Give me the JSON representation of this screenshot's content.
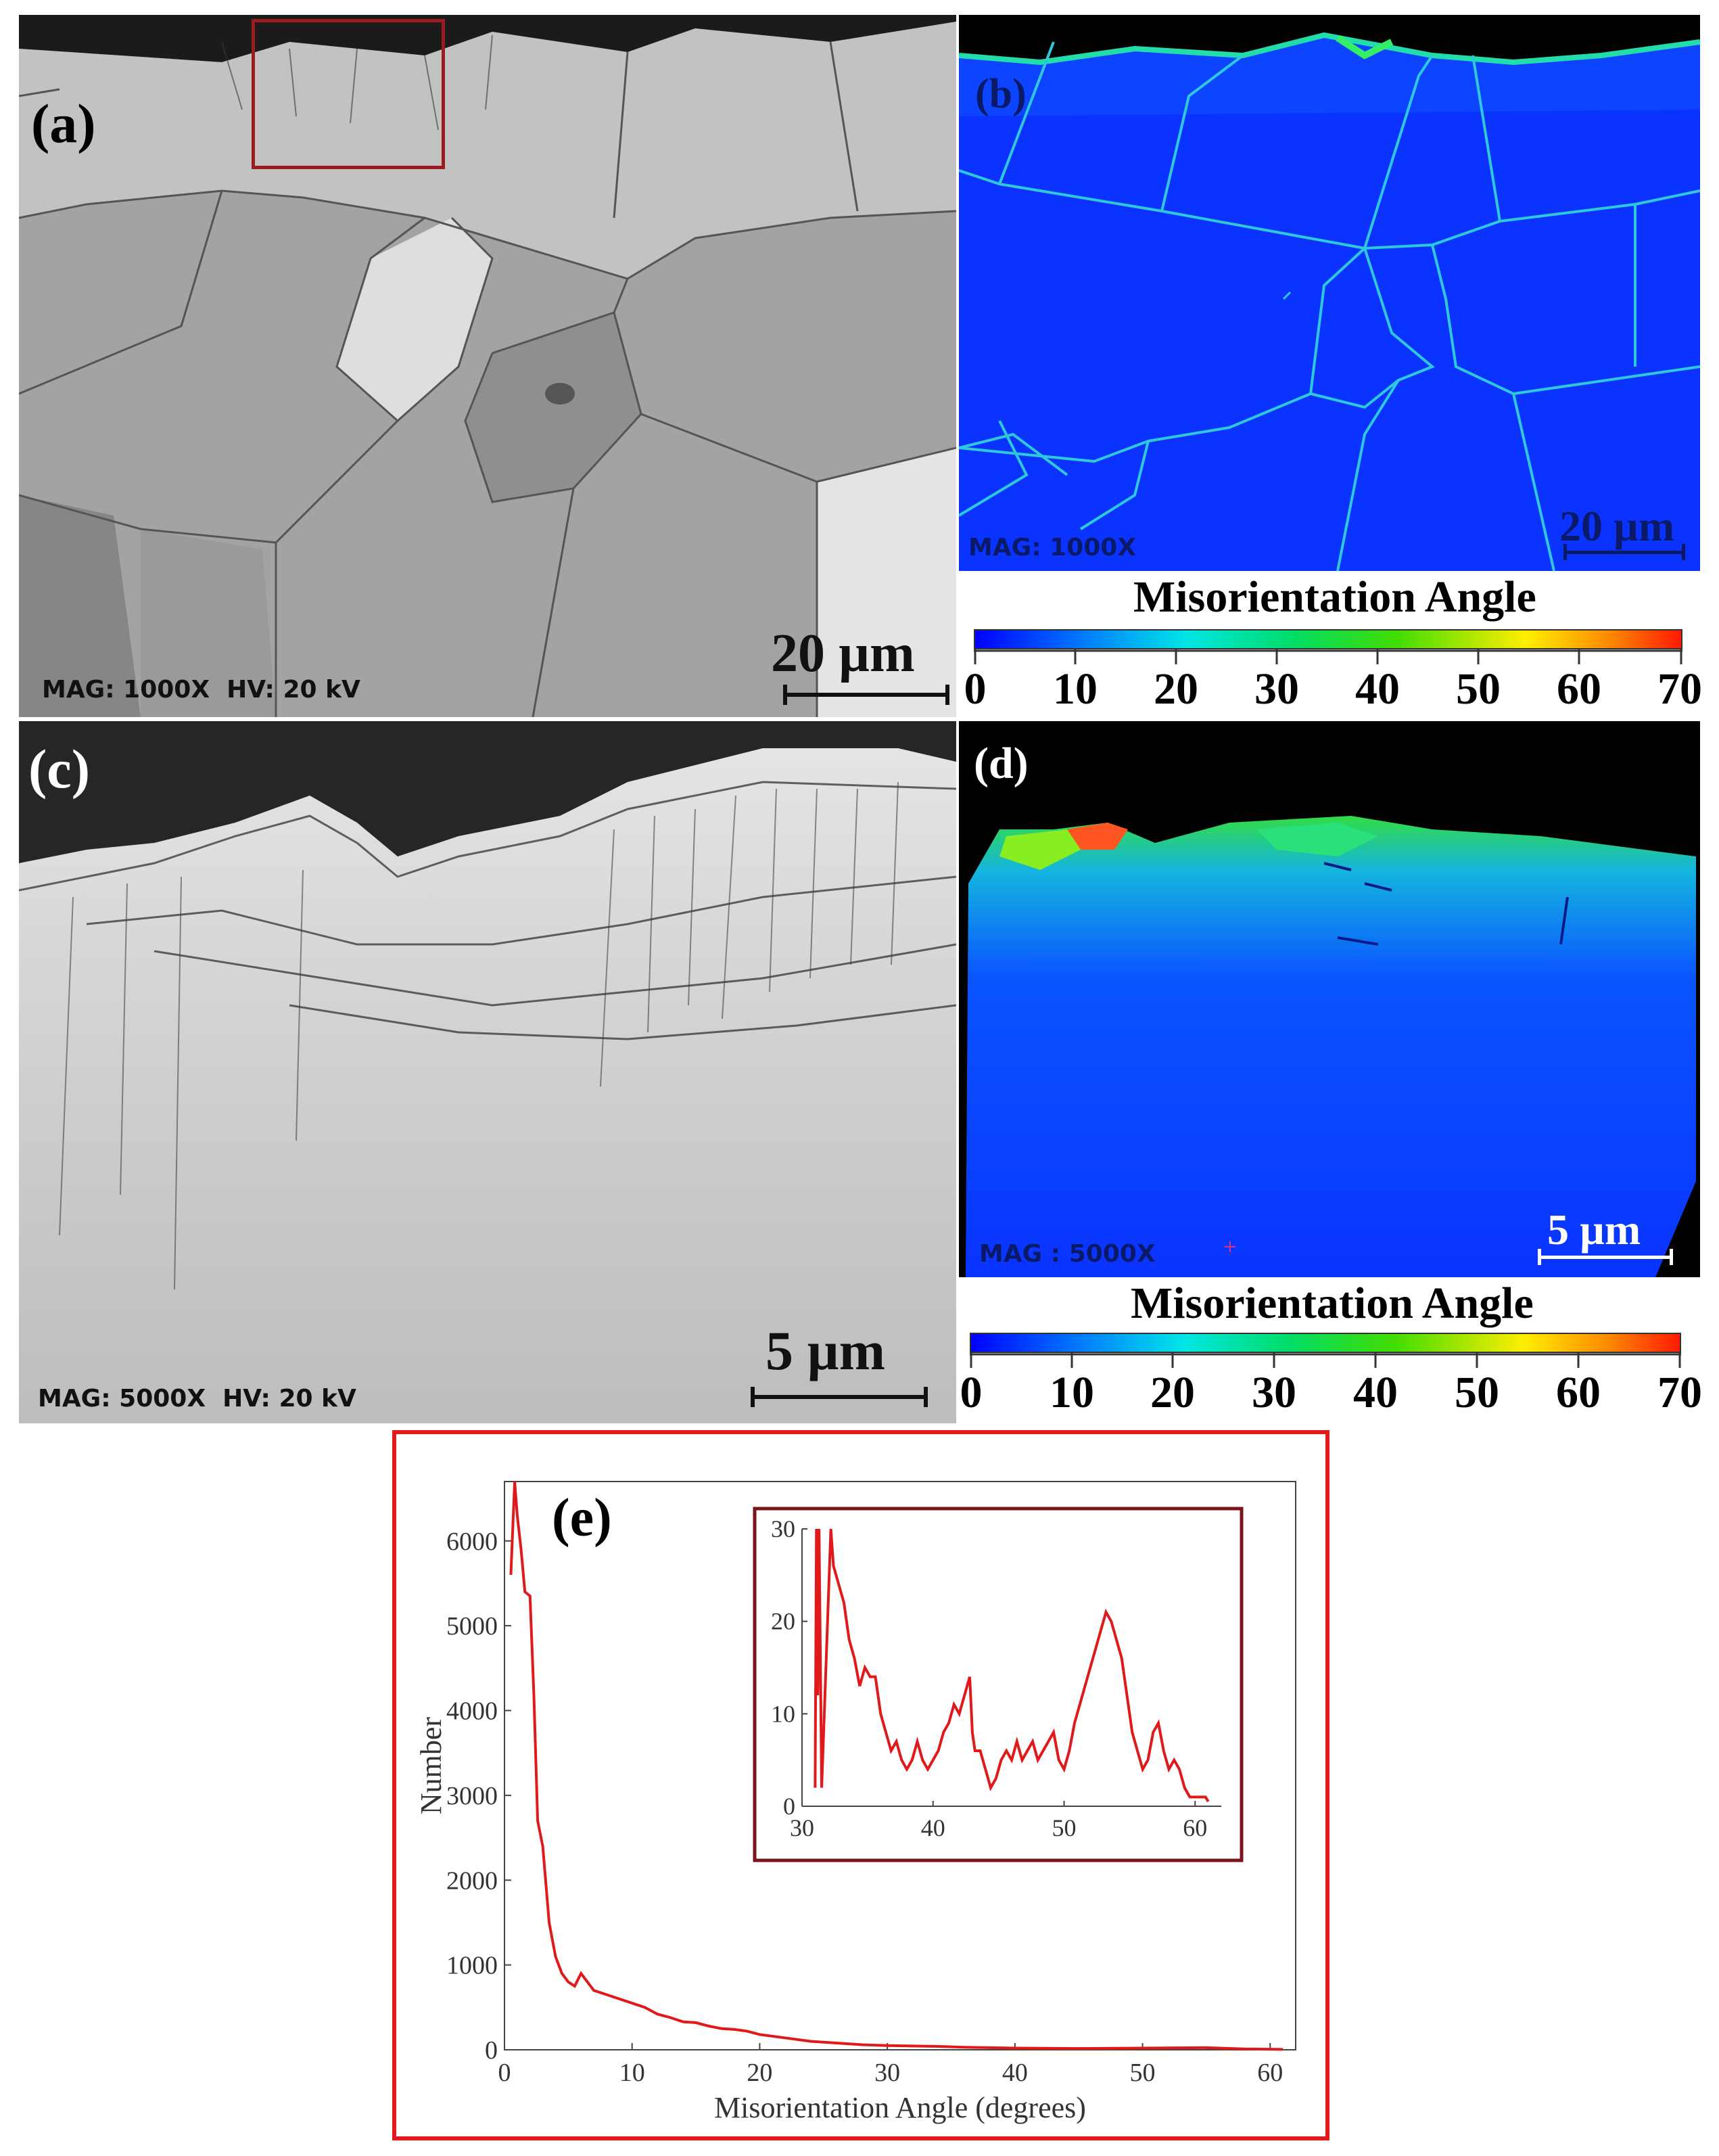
{
  "panels": {
    "a": {
      "label": "(a)",
      "mag_text": "MAG: 1000X  HV: 20 kV",
      "scale_text": "20 µm"
    },
    "b": {
      "label": "(b)",
      "mag_text": "MAG: 1000X",
      "scale_text": "20 µm",
      "colorbar": {
        "title": "Misorientation Angle",
        "ticks": [
          "0",
          "10",
          "20",
          "30",
          "40",
          "50",
          "60",
          "70"
        ]
      }
    },
    "c": {
      "label": "(c)",
      "mag_text": "MAG: 5000X  HV: 20 kV",
      "scale_text": "5 µm"
    },
    "d": {
      "label": "(d)",
      "mag_text": "MAG : 5000X",
      "scale_text": "5 µm",
      "colorbar": {
        "title": "Misorientation Angle",
        "ticks": [
          "0",
          "10",
          "20",
          "30",
          "40",
          "50",
          "60",
          "70"
        ]
      }
    }
  },
  "colors": {
    "frame_red": "#e31a1c",
    "inset_border": "#7b1418",
    "highlight_box": "#9b1b1e",
    "line_red": "#e0191b",
    "map_blue": "#0a33ff"
  },
  "chart_data": [
    {
      "type": "line",
      "panel_label": "(e)",
      "title": "",
      "xlabel": "Misorientation Angle (degrees)",
      "ylabel": "Number",
      "xlim": [
        0,
        62
      ],
      "ylim": [
        0,
        6700
      ],
      "xticks": [
        0,
        10,
        20,
        30,
        40,
        50,
        60
      ],
      "yticks": [
        0,
        1000,
        2000,
        3000,
        4000,
        5000,
        6000
      ],
      "series": [
        {
          "x": [
            0.5,
            0.8,
            1.0,
            1.3,
            1.6,
            2.0,
            2.3,
            2.6,
            3.0,
            3.5,
            4.0,
            4.5,
            5.0,
            5.5,
            6.0,
            6.5,
            7.0,
            8.0,
            9.0,
            10.0,
            11.0,
            12.0,
            13.0,
            14.0,
            15.0,
            16.0,
            17.0,
            18.0,
            19.0,
            20.0,
            22.0,
            24.0,
            26.0,
            28.0,
            30.0,
            32.0,
            34.0,
            36.0,
            38.0,
            40.0,
            45.0,
            50.0,
            55.0,
            58.0,
            61.0
          ],
          "y": [
            5600,
            6700,
            6300,
            5900,
            5400,
            5350,
            4200,
            2700,
            2400,
            1500,
            1100,
            900,
            800,
            750,
            900,
            800,
            700,
            650,
            600,
            550,
            500,
            420,
            380,
            330,
            320,
            280,
            250,
            240,
            220,
            180,
            140,
            100,
            80,
            60,
            50,
            45,
            40,
            30,
            25,
            20,
            15,
            20,
            25,
            10,
            5
          ]
        }
      ],
      "inset": {
        "type": "line",
        "xlim": [
          30,
          62
        ],
        "ylim": [
          0,
          30
        ],
        "xticks": [
          30,
          40,
          50,
          60
        ],
        "yticks": [
          0,
          10,
          20,
          30
        ],
        "series": [
          {
            "x": [
              31.0,
              31.1,
              31.2,
              31.3,
              31.5,
              32.2,
              32.4,
              32.8,
              33.2,
              33.6,
              34.0,
              34.4,
              34.8,
              35.2,
              35.6,
              36.0,
              36.4,
              36.8,
              37.2,
              37.6,
              38.0,
              38.4,
              38.8,
              39.2,
              39.6,
              40.0,
              40.4,
              40.8,
              41.2,
              41.6,
              42.0,
              42.4,
              42.8,
              43.0,
              43.2,
              43.6,
              44.0,
              44.4,
              44.8,
              45.2,
              45.6,
              46.0,
              46.4,
              46.8,
              47.2,
              47.6,
              48.0,
              48.4,
              48.8,
              49.2,
              49.6,
              50.0,
              50.4,
              50.8,
              51.2,
              51.6,
              52.0,
              52.4,
              52.8,
              53.2,
              53.6,
              54.0,
              54.4,
              54.8,
              55.2,
              55.6,
              56.0,
              56.4,
              56.8,
              57.2,
              57.6,
              58.0,
              58.4,
              58.8,
              59.2,
              59.6,
              60.0,
              60.4,
              60.8,
              61.0
            ],
            "y": [
              2,
              30,
              12,
              30,
              2,
              30,
              26,
              24,
              22,
              18,
              16,
              13,
              15,
              14,
              14,
              10,
              8,
              6,
              7,
              5,
              4,
              5,
              7,
              5,
              4,
              5,
              6,
              8,
              9,
              11,
              10,
              12,
              14,
              8,
              6,
              6,
              4,
              2,
              3,
              5,
              6,
              5,
              7,
              5,
              6,
              7,
              5,
              6,
              7,
              8,
              5,
              4,
              6,
              9,
              11,
              13,
              15,
              17,
              19,
              21,
              20,
              18,
              16,
              12,
              8,
              6,
              4,
              5,
              8,
              9,
              6,
              4,
              5,
              4,
              2,
              1,
              1,
              1,
              1,
              0.5
            ]
          }
        ]
      }
    }
  ]
}
